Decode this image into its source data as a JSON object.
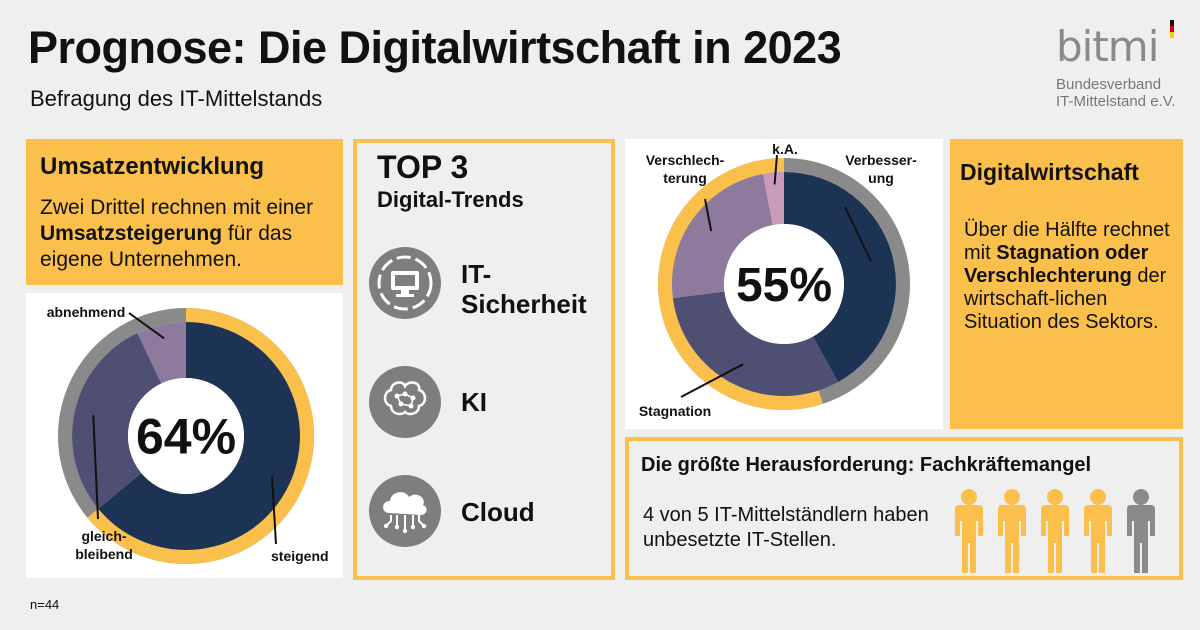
{
  "header": {
    "title": "Prognose: Die Digitalwirtschaft in 2023",
    "subtitle": "Befragung des IT-Mittelstands"
  },
  "logo": {
    "wordmark": "bitmi",
    "line1": "Bundesverband",
    "line2": "IT-Mittelstand e.V."
  },
  "umsatz": {
    "heading": "Umsatzentwicklung",
    "text_pre": "Zwei Drittel rechnen mit einer ",
    "text_bold": "Umsatzsteigerung",
    "text_post": " für das eigene Unternehmen."
  },
  "trends": {
    "title": "TOP 3",
    "subtitle": "Digital-Trends",
    "items": [
      {
        "label": "IT-Sicherheit",
        "line1": "IT-",
        "line2": "Sicherheit",
        "icon": "monitor-icon"
      },
      {
        "label": "KI",
        "icon": "brain-icon"
      },
      {
        "label": "Cloud",
        "icon": "cloud-icon"
      }
    ]
  },
  "digital": {
    "heading": "Digitalwirtschaft",
    "text_pre": "Über die Hälfte rechnet mit ",
    "text_bold": "Stagnation oder Verschlechterung",
    "text_post": " der wirtschaft-lichen Situation des Sektors."
  },
  "fachkraefte": {
    "heading": "Die größte Herausforderung: Fachkräftemangel",
    "text": "4 von 5 IT-Mittelständlern haben unbesetzte IT-Stellen.",
    "affected": 4,
    "total": 5
  },
  "footnote": "n=44",
  "chart_data": [
    {
      "type": "pie",
      "title": "Umsatzentwicklung",
      "center_label": "64%",
      "categories": [
        "steigend",
        "gleichbleibend",
        "abnehmend"
      ],
      "values": [
        64,
        29,
        7
      ],
      "labels": [
        {
          "category": "steigend",
          "text": "steigend"
        },
        {
          "category": "gleichbleibend",
          "line1": "gleich-",
          "line2": "bleibend"
        },
        {
          "category": "abnehmend",
          "text": "abnehmend"
        }
      ],
      "colors": [
        "#1d3354",
        "#4f4e73",
        "#8e7a9c"
      ],
      "highlight_value": 64,
      "highlight_color": "#fbc04c",
      "rest_color": "#8a8a8a"
    },
    {
      "type": "pie",
      "title": "Digitalwirtschaft",
      "center_label": "55%",
      "categories": [
        "Verbesserung",
        "Stagnation",
        "Verschlechterung",
        "k.A."
      ],
      "values": [
        42,
        31,
        24,
        3
      ],
      "labels": [
        {
          "category": "Verbesserung",
          "line1": "Verbesser-",
          "line2": "ung"
        },
        {
          "category": "Stagnation",
          "text": "Stagnation"
        },
        {
          "category": "Verschlechterung",
          "line1": "Verschlech-",
          "line2": "terung"
        },
        {
          "category": "k.A.",
          "text": "k.A."
        }
      ],
      "colors": [
        "#1d3354",
        "#4f4e73",
        "#8e7a9c",
        "#c99bb8"
      ],
      "highlight_value": 55,
      "highlight_color": "#fbc04c",
      "rest_color": "#8a8a8a"
    }
  ],
  "colors": {
    "accent": "#fbc04c",
    "navy": "#1d3354",
    "purple": "#4f4e73",
    "mauve": "#8e7a9c",
    "pink": "#c99bb8",
    "grey": "#8a8a8a",
    "background": "#efefef"
  }
}
